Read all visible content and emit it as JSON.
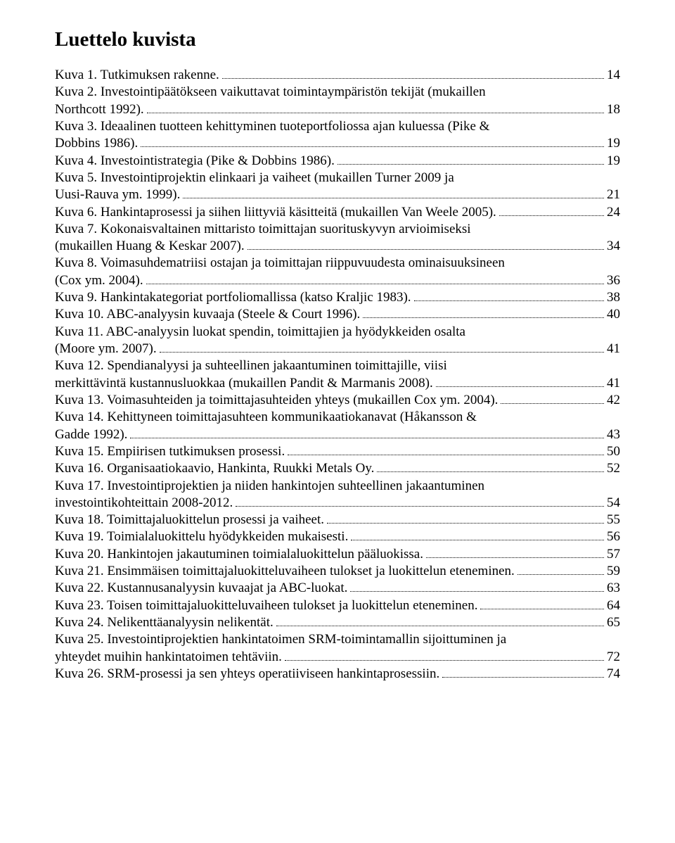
{
  "title": "Luettelo kuvista",
  "entries": [
    {
      "lines": [
        "Kuva 1. Tutkimuksen rakenne."
      ],
      "page": "14"
    },
    {
      "lines": [
        "Kuva 2. Investointipäätökseen vaikuttavat toimintaympäristön tekijät (mukaillen",
        "Northcott 1992)."
      ],
      "page": "18"
    },
    {
      "lines": [
        "Kuva 3. Ideaalinen tuotteen kehittyminen tuoteportfoliossa ajan kuluessa (Pike &",
        "Dobbins 1986)."
      ],
      "page": "19"
    },
    {
      "lines": [
        "Kuva 4. Investointistrategia (Pike & Dobbins 1986)."
      ],
      "page": "19"
    },
    {
      "lines": [
        "Kuva 5. Investointiprojektin elinkaari ja vaiheet (mukaillen Turner 2009 ja",
        "Uusi-Rauva ym. 1999)."
      ],
      "page": "21"
    },
    {
      "lines": [
        "Kuva 6. Hankintaprosessi ja siihen liittyviä käsitteitä (mukaillen Van Weele 2005)."
      ],
      "page": "24"
    },
    {
      "lines": [
        "Kuva 7. Kokonaisvaltainen mittaristo toimittajan suorituskyvyn arvioimiseksi",
        "(mukaillen Huang & Keskar 2007)."
      ],
      "page": "34"
    },
    {
      "lines": [
        "Kuva 8. Voimasuhdematriisi ostajan ja toimittajan riippuvuudesta ominaisuuksineen",
        "(Cox ym. 2004)."
      ],
      "page": "36"
    },
    {
      "lines": [
        "Kuva 9. Hankintakategoriat portfoliomallissa (katso Kraljic 1983)."
      ],
      "page": "38"
    },
    {
      "lines": [
        "Kuva 10. ABC-analyysin kuvaaja (Steele & Court 1996)."
      ],
      "page": "40"
    },
    {
      "lines": [
        "Kuva 11. ABC-analyysin luokat spendin, toimittajien ja hyödykkeiden osalta",
        "(Moore ym. 2007)."
      ],
      "page": "41"
    },
    {
      "lines": [
        "Kuva 12. Spendianalyysi ja suhteellinen jakaantuminen toimittajille, viisi",
        "merkittävintä kustannusluokkaa (mukaillen Pandit & Marmanis 2008)."
      ],
      "page": "41"
    },
    {
      "lines": [
        "Kuva 13. Voimasuhteiden ja toimittajasuhteiden yhteys (mukaillen Cox ym. 2004)."
      ],
      "page": "42"
    },
    {
      "lines": [
        "Kuva 14. Kehittyneen toimittajasuhteen kommunikaatiokanavat (Håkansson &",
        "Gadde 1992)."
      ],
      "page": "43"
    },
    {
      "lines": [
        "Kuva 15. Empiirisen tutkimuksen prosessi."
      ],
      "page": "50"
    },
    {
      "lines": [
        "Kuva 16. Organisaatiokaavio, Hankinta, Ruukki Metals Oy."
      ],
      "page": "52"
    },
    {
      "lines": [
        "Kuva 17. Investointiprojektien ja niiden hankintojen suhteellinen jakaantuminen",
        "investointikohteittain 2008-2012."
      ],
      "page": "54"
    },
    {
      "lines": [
        "Kuva 18. Toimittajaluokittelun prosessi ja vaiheet."
      ],
      "page": "55"
    },
    {
      "lines": [
        "Kuva 19. Toimialaluokittelu hyödykkeiden mukaisesti."
      ],
      "page": "56"
    },
    {
      "lines": [
        "Kuva 20. Hankintojen jakautuminen toimialaluokittelun pääluokissa."
      ],
      "page": "57"
    },
    {
      "lines": [
        "Kuva 21. Ensimmäisen toimittajaluokitteluvaiheen tulokset ja luokittelun eteneminen."
      ],
      "page": "59"
    },
    {
      "lines": [
        "Kuva 22. Kustannusanalyysin kuvaajat ja ABC-luokat."
      ],
      "page": "63"
    },
    {
      "lines": [
        "Kuva 23. Toisen toimittajaluokitteluvaiheen tulokset ja luokittelun eteneminen."
      ],
      "page": "64"
    },
    {
      "lines": [
        "Kuva 24. Nelikenttäanalyysin nelikentät."
      ],
      "page": "65"
    },
    {
      "lines": [
        "Kuva 25. Investointiprojektien hankintatoimen SRM-toimintamallin sijoittuminen ja",
        "yhteydet muihin hankintatoimen tehtäviin."
      ],
      "page": "72"
    },
    {
      "lines": [
        "Kuva 26. SRM-prosessi ja sen yhteys operatiiviseen hankintaprosessiin."
      ],
      "page": "74"
    }
  ]
}
